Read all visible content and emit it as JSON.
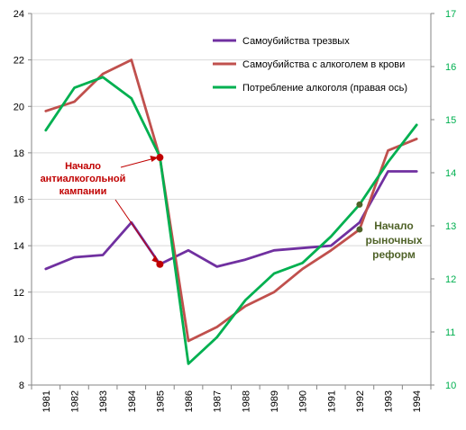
{
  "chart_data": {
    "type": "line",
    "categories": [
      "1981",
      "1982",
      "1983",
      "1984",
      "1985",
      "1986",
      "1987",
      "1988",
      "1989",
      "1990",
      "1991",
      "1992",
      "1993",
      "1994"
    ],
    "left_axis": {
      "ylim": [
        8,
        24
      ],
      "ticks": [
        "8",
        "10",
        "12",
        "14",
        "16",
        "18",
        "20",
        "22",
        "24"
      ],
      "tick_values": [
        8,
        10,
        12,
        14,
        16,
        18,
        20,
        22,
        24
      ]
    },
    "right_axis": {
      "ylim": [
        10,
        17
      ],
      "ticks": [
        "10",
        "11",
        "12",
        "13",
        "14",
        "15",
        "16",
        "17"
      ],
      "tick_values": [
        10,
        11,
        12,
        13,
        14,
        15,
        16,
        17
      ]
    },
    "grid": "horizontal",
    "legend_position": "top-right",
    "series": [
      {
        "name": "Самоубийства трезвых",
        "color": "#7030a0",
        "axis": "left",
        "values": [
          13.0,
          13.5,
          13.6,
          15.0,
          13.2,
          13.8,
          13.1,
          13.4,
          13.8,
          13.9,
          14.0,
          15.0,
          17.2,
          17.2
        ]
      },
      {
        "name": "Самоубийства с алкоголем в крови",
        "color": "#c0504d",
        "axis": "left",
        "values": [
          19.8,
          20.2,
          21.4,
          22.0,
          17.8,
          9.9,
          10.5,
          11.4,
          12.0,
          13.0,
          13.8,
          14.7,
          18.1,
          18.6
        ]
      },
      {
        "name": "Потребление алкоголя (правая ось)",
        "color": "#00b050",
        "axis": "right",
        "values": [
          14.8,
          15.6,
          15.8,
          15.4,
          14.3,
          10.4,
          10.9,
          11.6,
          12.1,
          12.3,
          12.8,
          13.4,
          14.2,
          14.9
        ]
      }
    ],
    "annotations": [
      {
        "id": "campaign",
        "lines": [
          "Начало",
          "антиалкогольной",
          "кампании"
        ],
        "color": "#c00000",
        "category": "1985"
      },
      {
        "id": "reforms",
        "lines": [
          "Начало",
          "рыночных",
          "реформ"
        ],
        "color": "#4f6228",
        "category": "1992"
      }
    ]
  }
}
